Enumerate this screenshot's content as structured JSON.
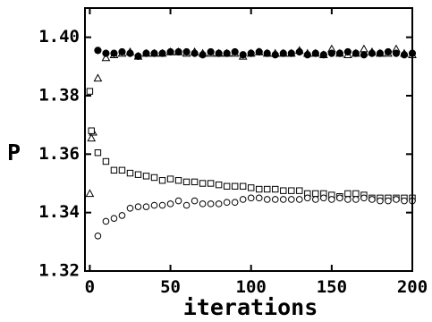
{
  "chart_data": {
    "type": "scatter",
    "title": "",
    "xlabel": "iterations",
    "ylabel": "P",
    "xlim": [
      -3,
      200
    ],
    "ylim": [
      1.32,
      1.41
    ],
    "xticks": [
      0,
      50,
      100,
      150,
      200
    ],
    "xtick_labels": [
      "0",
      "50",
      "100",
      "150",
      "200"
    ],
    "yticks": [
      1.32,
      1.34,
      1.36,
      1.38,
      1.4
    ],
    "ytick_labels": [
      "1.32",
      "1.34",
      "1.36",
      "1.38",
      "1.40"
    ],
    "grid": false,
    "legend": "none",
    "series": [
      {
        "marker": "filled-circle",
        "color": "#000000",
        "x": [
          5,
          10,
          15,
          20,
          25,
          30,
          35,
          40,
          45,
          50,
          55,
          60,
          65,
          70,
          75,
          80,
          85,
          90,
          95,
          100,
          105,
          110,
          115,
          120,
          125,
          130,
          135,
          140,
          145,
          150,
          155,
          160,
          165,
          170,
          175,
          180,
          185,
          190,
          195,
          200
        ],
        "y": [
          1.3955,
          1.3945,
          1.3945,
          1.395,
          1.3945,
          1.3935,
          1.3945,
          1.3945,
          1.3945,
          1.395,
          1.395,
          1.395,
          1.3945,
          1.394,
          1.395,
          1.3945,
          1.3945,
          1.395,
          1.394,
          1.3945,
          1.395,
          1.3945,
          1.394,
          1.3945,
          1.3945,
          1.395,
          1.394,
          1.3945,
          1.394,
          1.3945,
          1.3945,
          1.395,
          1.3945,
          1.394,
          1.3945,
          1.3945,
          1.395,
          1.3945,
          1.394,
          1.3945
        ]
      },
      {
        "marker": "open-triangle",
        "color": "#000000",
        "x": [
          0,
          1,
          2,
          5,
          10,
          15,
          20,
          25,
          30,
          35,
          40,
          45,
          50,
          55,
          60,
          65,
          70,
          75,
          80,
          85,
          90,
          95,
          100,
          105,
          110,
          115,
          120,
          125,
          130,
          135,
          140,
          145,
          150,
          155,
          160,
          165,
          170,
          175,
          180,
          185,
          190,
          195,
          200
        ],
        "y": [
          1.3465,
          1.3655,
          1.3675,
          1.386,
          1.393,
          1.394,
          1.3945,
          1.395,
          1.3935,
          1.3945,
          1.3945,
          1.3945,
          1.395,
          1.395,
          1.3945,
          1.395,
          1.3945,
          1.3945,
          1.3945,
          1.3945,
          1.3945,
          1.3935,
          1.3945,
          1.395,
          1.3945,
          1.3945,
          1.3945,
          1.3945,
          1.3955,
          1.3945,
          1.3945,
          1.394,
          1.396,
          1.3945,
          1.394,
          1.3945,
          1.396,
          1.395,
          1.3945,
          1.3945,
          1.396,
          1.3945,
          1.394
        ]
      },
      {
        "marker": "open-square",
        "color": "#000000",
        "x": [
          0,
          1,
          5,
          10,
          15,
          20,
          25,
          30,
          35,
          40,
          45,
          50,
          55,
          60,
          65,
          70,
          75,
          80,
          85,
          90,
          95,
          100,
          105,
          110,
          115,
          120,
          125,
          130,
          135,
          140,
          145,
          150,
          155,
          160,
          165,
          170,
          175,
          180,
          185,
          190,
          195,
          200
        ],
        "y": [
          1.3815,
          1.368,
          1.3605,
          1.3575,
          1.3545,
          1.3545,
          1.3535,
          1.353,
          1.3525,
          1.352,
          1.351,
          1.3515,
          1.351,
          1.3505,
          1.3505,
          1.35,
          1.35,
          1.3495,
          1.349,
          1.349,
          1.349,
          1.3485,
          1.348,
          1.348,
          1.348,
          1.3475,
          1.3475,
          1.3475,
          1.3465,
          1.3465,
          1.3465,
          1.346,
          1.3455,
          1.3465,
          1.3465,
          1.346,
          1.345,
          1.345,
          1.345,
          1.345,
          1.345,
          1.345
        ]
      },
      {
        "marker": "open-circle",
        "color": "#000000",
        "x": [
          5,
          10,
          15,
          20,
          25,
          30,
          35,
          40,
          45,
          50,
          55,
          60,
          65,
          70,
          75,
          80,
          85,
          90,
          95,
          100,
          105,
          110,
          115,
          120,
          125,
          130,
          135,
          140,
          145,
          150,
          155,
          160,
          165,
          170,
          175,
          180,
          185,
          190,
          195,
          200
        ],
        "y": [
          1.332,
          1.337,
          1.338,
          1.339,
          1.3415,
          1.342,
          1.342,
          1.3425,
          1.3425,
          1.343,
          1.344,
          1.3425,
          1.344,
          1.343,
          1.343,
          1.343,
          1.3435,
          1.3435,
          1.3445,
          1.345,
          1.345,
          1.3445,
          1.3445,
          1.3445,
          1.3445,
          1.3445,
          1.345,
          1.3445,
          1.345,
          1.3445,
          1.345,
          1.3445,
          1.3445,
          1.345,
          1.3445,
          1.344,
          1.344,
          1.3445,
          1.344,
          1.344
        ]
      }
    ]
  }
}
